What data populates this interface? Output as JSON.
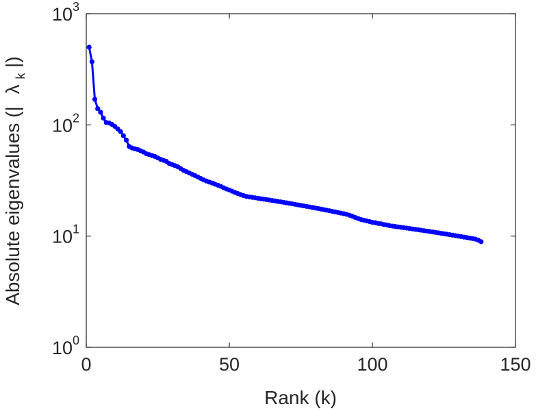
{
  "chart_data": {
    "type": "line",
    "title": "",
    "xlabel": "Rank (k)",
    "ylabel": {
      "prefix": "Absolute eigenvalues (|",
      "symbol": "λ",
      "subscript": "k",
      "suffix": "|)"
    },
    "xlim": [
      0,
      150
    ],
    "ylim": [
      1,
      1000
    ],
    "yscale": "log",
    "x_ticks": [
      {
        "value": 0,
        "label": "0"
      },
      {
        "value": 50,
        "label": "50"
      },
      {
        "value": 100,
        "label": "100"
      },
      {
        "value": 150,
        "label": "150"
      }
    ],
    "y_ticks": [
      {
        "value": 1,
        "base": "10",
        "exp": "0"
      },
      {
        "value": 10,
        "base": "10",
        "exp": "1"
      },
      {
        "value": 100,
        "base": "10",
        "exp": "2"
      },
      {
        "value": 1000,
        "base": "10",
        "exp": "3"
      }
    ],
    "grid": false,
    "series": [
      {
        "color": "#0000ff",
        "marker": "circle",
        "x": [
          1,
          2,
          3,
          4,
          5,
          6,
          7,
          8,
          9,
          10,
          11,
          12,
          13,
          14,
          15,
          16,
          17,
          18,
          19,
          20,
          21,
          22,
          23,
          24,
          25,
          26,
          27,
          28,
          29,
          30,
          31,
          32,
          33,
          34,
          35,
          36,
          37,
          38,
          39,
          40,
          41,
          42,
          43,
          44,
          45,
          46,
          47,
          48,
          49,
          50,
          51,
          52,
          53,
          54,
          55,
          56,
          57,
          58,
          59,
          60,
          61,
          62,
          63,
          64,
          65,
          66,
          67,
          68,
          69,
          70,
          71,
          72,
          73,
          74,
          75,
          76,
          77,
          78,
          79,
          80,
          81,
          82,
          83,
          84,
          85,
          86,
          87,
          88,
          89,
          90,
          91,
          92,
          93,
          94,
          95,
          96,
          97,
          98,
          99,
          100,
          101,
          102,
          103,
          104,
          105,
          106,
          107,
          108,
          109,
          110,
          111,
          112,
          113,
          114,
          115,
          116,
          117,
          118,
          119,
          120,
          121,
          122,
          123,
          124,
          125,
          126,
          127,
          128,
          129,
          130,
          131,
          132,
          133,
          134,
          135,
          136,
          137,
          138
        ],
        "y": [
          500,
          370,
          170,
          140,
          130,
          115,
          105,
          104,
          101,
          97,
          92,
          87,
          80,
          73,
          64,
          62,
          61,
          60,
          58.5,
          57,
          55,
          54,
          53,
          52,
          50.5,
          49,
          48,
          47,
          45,
          44,
          43,
          42,
          40.5,
          39,
          38,
          37,
          36,
          35,
          34,
          33,
          32,
          31.3,
          30.6,
          30,
          29.3,
          28.7,
          28,
          27.2,
          26.5,
          26,
          25.3,
          24.7,
          24.1,
          23.6,
          23.1,
          22.7,
          22.5,
          22.3,
          22.1,
          21.9,
          21.7,
          21.5,
          21.3,
          21.1,
          20.9,
          20.7,
          20.5,
          20.3,
          20.1,
          19.9,
          19.7,
          19.5,
          19.3,
          19.1,
          18.9,
          18.7,
          18.5,
          18.3,
          18.1,
          17.9,
          17.7,
          17.5,
          17.3,
          17.1,
          16.9,
          16.7,
          16.5,
          16.3,
          16.1,
          15.9,
          15.7,
          15.4,
          15.1,
          14.7,
          14.4,
          14.1,
          13.9,
          13.7,
          13.5,
          13.3,
          13.2,
          13.0,
          12.9,
          12.7,
          12.6,
          12.4,
          12.3,
          12.2,
          12.1,
          12.0,
          11.9,
          11.8,
          11.7,
          11.6,
          11.5,
          11.4,
          11.3,
          11.2,
          11.1,
          11.0,
          10.9,
          10.8,
          10.7,
          10.6,
          10.5,
          10.4,
          10.3,
          10.2,
          10.1,
          10.0,
          9.9,
          9.8,
          9.7,
          9.6,
          9.5,
          9.4,
          9.2,
          8.9
        ]
      }
    ]
  }
}
